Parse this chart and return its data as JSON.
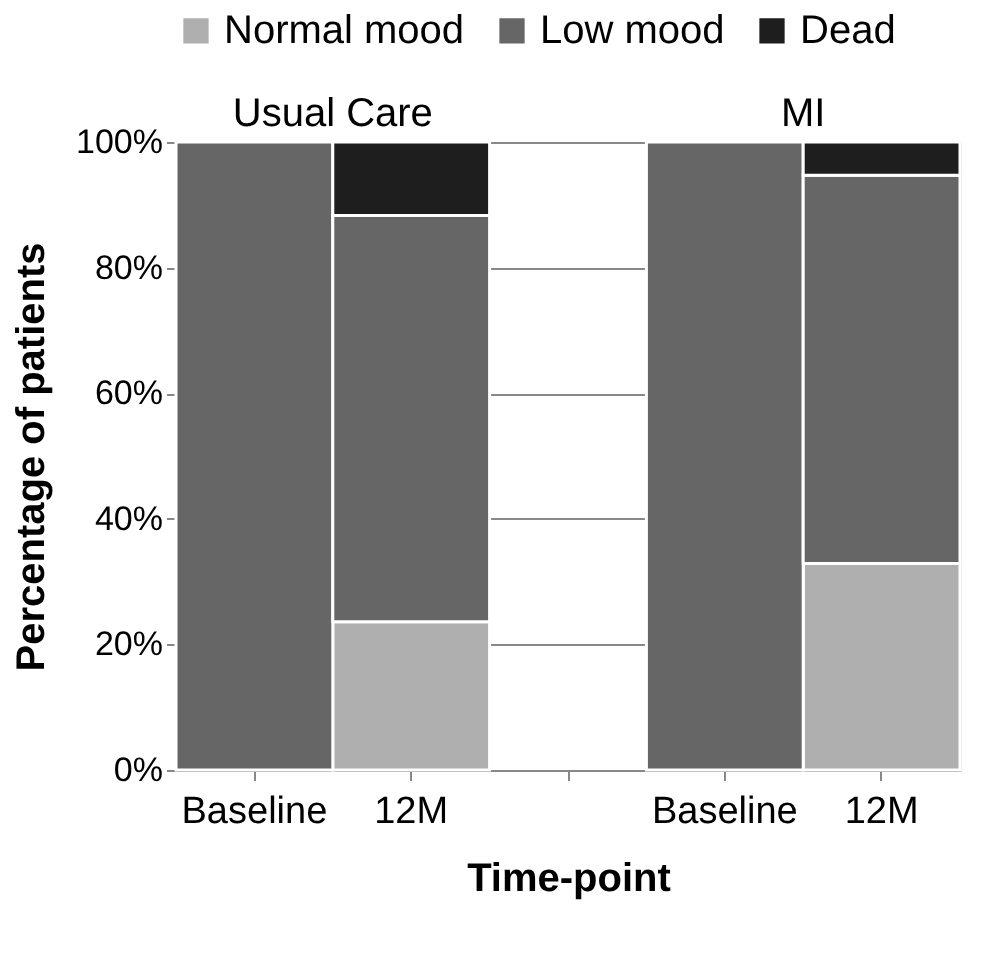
{
  "chart_data": {
    "type": "bar",
    "stacked": true,
    "xlabel": "Time-point",
    "ylabel": "Percentage of patients",
    "categories": [
      "Baseline",
      "12M",
      null,
      "Baseline",
      "12M"
    ],
    "series": [
      {
        "name": "Normal mood",
        "color": "#afafaf",
        "values": [
          0,
          23.6,
          null,
          0,
          32.9
        ]
      },
      {
        "name": "Low mood",
        "color": "#666666",
        "values": [
          100,
          64.7,
          null,
          100,
          61.8
        ]
      },
      {
        "name": "Dead",
        "color": "#1e1e1e",
        "values": [
          0,
          11.7,
          null,
          0,
          5.3
        ]
      }
    ],
    "ylim": [
      0,
      100
    ],
    "yticks": [
      {
        "value": 0,
        "label": "0%"
      },
      {
        "value": 20,
        "label": "20%"
      },
      {
        "value": 40,
        "label": "40%"
      },
      {
        "value": 60,
        "label": "60%"
      },
      {
        "value": 80,
        "label": "80%"
      },
      {
        "value": 100,
        "label": "100%"
      }
    ],
    "grid": "y",
    "legend": "top",
    "annotations": [
      "Usual Care",
      "MI"
    ]
  }
}
